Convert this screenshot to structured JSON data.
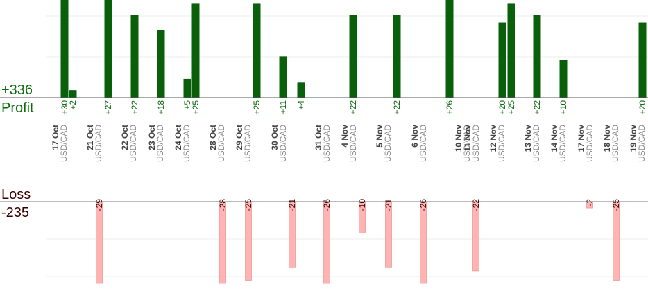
{
  "summary": {
    "profit_value": "+336",
    "profit_label": "Profit",
    "loss_label": "Loss",
    "loss_value": "-235"
  },
  "colors": {
    "profit_bar": "#0a5f0a",
    "profit_text": "#0b6b0b",
    "loss_bar": "#ffb3b3",
    "loss_bar_edge": "#ee9a9a",
    "loss_text": "#3a0000",
    "date_text": "#444444",
    "pair_text": "#8a8a8a"
  },
  "chart_data": {
    "type": "bar",
    "dates": [
      {
        "date": "17 Oct",
        "pair": "USD/CAD"
      },
      {
        "date": "21 Oct",
        "pair": "USD/CAD"
      },
      {
        "date": "22 Oct",
        "pair": "USD/CAD"
      },
      {
        "date": "23 Oct",
        "pair": "USD/CAD"
      },
      {
        "date": "24 Oct",
        "pair": "USD/CAD"
      },
      {
        "date": "28 Oct",
        "pair": "USD/CAD"
      },
      {
        "date": "29 Oct",
        "pair": "USD/CAD"
      },
      {
        "date": "30 Oct",
        "pair": "USD/CAD"
      },
      {
        "date": "31 Oct",
        "pair": "USD/CAD"
      },
      {
        "date": "4 Nov",
        "pair": "USD/CAD"
      },
      {
        "date": "5 Nov",
        "pair": "USD/CAD"
      },
      {
        "date": "6 Nov",
        "pair": "USD/CAD"
      },
      {
        "date": "10 Nov",
        "pair": "USD/CAD"
      },
      {
        "date": "11 Nov",
        "pair": "USD/CAD"
      },
      {
        "date": "12 Nov",
        "pair": "USD/CAD"
      },
      {
        "date": "13 Nov",
        "pair": "USD/CAD"
      },
      {
        "date": "14 Nov",
        "pair": "USD/CAD"
      },
      {
        "date": "17 Nov",
        "pair": "USD/CAD"
      },
      {
        "date": "18 Nov",
        "pair": "USD/CAD"
      },
      {
        "date": "19 Nov",
        "pair": "USD/CAD"
      }
    ],
    "profits": [
      {
        "label": "+30",
        "value": 30
      },
      {
        "label": "+2",
        "value": 2
      },
      {
        "label": "+27",
        "value": 27
      },
      {
        "label": "+22",
        "value": 22
      },
      {
        "label": "+18",
        "value": 18
      },
      {
        "label": "+5",
        "value": 5
      },
      {
        "label": "+25",
        "value": 25
      },
      {
        "label": "+25",
        "value": 25
      },
      {
        "label": "+11",
        "value": 11
      },
      {
        "label": "+4",
        "value": 4
      },
      {
        "label": "+22",
        "value": 22
      },
      {
        "label": "+22",
        "value": 22
      },
      {
        "label": "+26",
        "value": 26
      },
      {
        "label": "+20",
        "value": 20
      },
      {
        "label": "+25",
        "value": 25
      },
      {
        "label": "+22",
        "value": 22
      },
      {
        "label": "+10",
        "value": 10
      },
      {
        "label": "+20",
        "value": 20
      }
    ],
    "losses": [
      {
        "label": "-29",
        "value": -29
      },
      {
        "label": "-28",
        "value": -28
      },
      {
        "label": "-25",
        "value": -25
      },
      {
        "label": "-21",
        "value": -21
      },
      {
        "label": "-26",
        "value": -26
      },
      {
        "label": "-10",
        "value": -10
      },
      {
        "label": "-21",
        "value": -21
      },
      {
        "label": "-26",
        "value": -26
      },
      {
        "label": "-22",
        "value": -22
      },
      {
        "label": "-2",
        "value": -2
      },
      {
        "label": "-25",
        "value": -25
      }
    ],
    "profit_ylim": [
      0,
      26
    ],
    "loss_ylim": [
      -26,
      0
    ],
    "grid": true
  }
}
